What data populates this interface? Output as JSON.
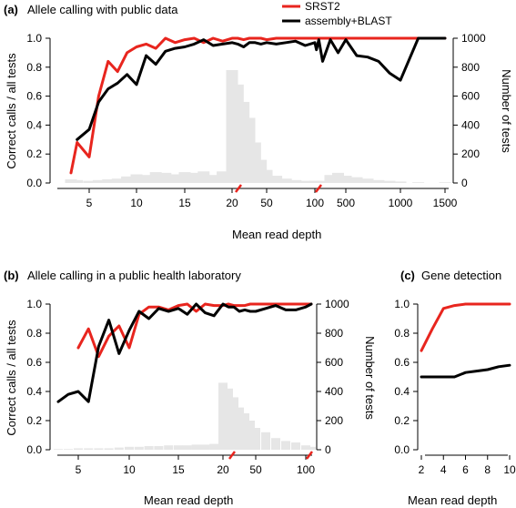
{
  "chart_data": [
    {
      "panel": "(a)",
      "type": "line",
      "title": "Allele calling with public data",
      "xlabel": "Mean read depth",
      "ylabel": "Correct calls / all tests",
      "y2label": "Number of tests",
      "ylim": [
        0,
        1
      ],
      "y2lim": [
        0,
        1000
      ],
      "yticks": [
        "0.0",
        "0.2",
        "0.4",
        "0.6",
        "0.8",
        "1.0"
      ],
      "y2ticks": [
        "0",
        "200",
        "400",
        "600",
        "800",
        "1000"
      ],
      "xticks": [
        "5",
        "10",
        "15",
        "20",
        "50",
        "100",
        "500",
        "1000",
        "1500"
      ],
      "legend": "top-right",
      "x": [
        3.5,
        4,
        5,
        6,
        7,
        8,
        9,
        10,
        11,
        12,
        13,
        14,
        15,
        16,
        17,
        18,
        19,
        20,
        25,
        30,
        35,
        40,
        45,
        50,
        60,
        70,
        80,
        90,
        100,
        120,
        150,
        200,
        300,
        400,
        500,
        600,
        700,
        800,
        900,
        1000,
        1200,
        1500
      ],
      "series": [
        {
          "name": "SRST2",
          "color": "#e8251e",
          "values": [
            0.07,
            0.28,
            0.18,
            0.6,
            0.84,
            0.77,
            0.9,
            0.94,
            0.96,
            0.93,
            1.0,
            0.97,
            0.99,
            1.0,
            0.97,
            1.0,
            0.98,
            1.0,
            1.0,
            0.99,
            1.0,
            1.0,
            1.0,
            0.99,
            1.0,
            1.0,
            1.0,
            1.0,
            1.0,
            1.0,
            1.0,
            1.0,
            1.0,
            1.0,
            1.0,
            1.0,
            1.0,
            1.0,
            1.0,
            1.0,
            1.0,
            1.0
          ]
        },
        {
          "name": "assembly+BLAST",
          "color": "#000000",
          "values": [
            null,
            0.3,
            0.37,
            0.56,
            0.65,
            0.69,
            0.75,
            0.68,
            0.88,
            0.82,
            0.91,
            0.93,
            0.94,
            0.96,
            0.99,
            0.95,
            0.96,
            0.97,
            0.96,
            0.94,
            0.97,
            0.97,
            0.96,
            0.97,
            0.96,
            0.97,
            0.98,
            0.95,
            0.97,
            0.92,
            0.99,
            0.84,
            0.99,
            0.9,
            0.99,
            0.88,
            0.87,
            0.84,
            0.76,
            0.71,
            1.0,
            1.0
          ]
        }
      ],
      "histogram": {
        "name": "Number of tests",
        "color": "#e6e6e6",
        "x": [
          3.5,
          4,
          5,
          6,
          7,
          8,
          9,
          10,
          11,
          12,
          13,
          14,
          15,
          16,
          17,
          18,
          19,
          20,
          25,
          30,
          35,
          40,
          45,
          50,
          60,
          70,
          80,
          90,
          100,
          120,
          150,
          200,
          300,
          400,
          500,
          600,
          700,
          800,
          900,
          1000,
          1200,
          1500
        ],
        "values": [
          25,
          20,
          15,
          20,
          25,
          30,
          45,
          60,
          55,
          75,
          70,
          60,
          75,
          70,
          80,
          55,
          80,
          780,
          680,
          560,
          450,
          280,
          160,
          90,
          50,
          30,
          20,
          15,
          15,
          15,
          10,
          15,
          55,
          70,
          50,
          40,
          30,
          20,
          15,
          10,
          5,
          5
        ]
      }
    },
    {
      "panel": "(b)",
      "type": "line",
      "title": "Allele calling in a public health laboratory",
      "xlabel": "Mean read depth",
      "ylabel": "Correct calls / all tests",
      "y2label": "Number of tests",
      "ylim": [
        0,
        1
      ],
      "y2lim": [
        0,
        1000
      ],
      "yticks": [
        "0.0",
        "0.2",
        "0.4",
        "0.6",
        "0.8",
        "1.0"
      ],
      "y2ticks": [
        "0",
        "200",
        "400",
        "600",
        "800",
        "1000"
      ],
      "xticks": [
        "5",
        "10",
        "15",
        "20",
        "50",
        "100"
      ],
      "x": [
        3,
        4,
        5,
        6,
        7,
        8,
        9,
        10,
        11,
        12,
        13,
        14,
        15,
        16,
        17,
        18,
        19,
        20,
        25,
        30,
        35,
        40,
        45,
        50,
        60,
        70,
        80,
        90,
        100,
        120
      ],
      "series": [
        {
          "name": "SRST2",
          "color": "#e8251e",
          "values": [
            null,
            null,
            0.7,
            0.83,
            0.64,
            0.78,
            0.85,
            0.7,
            0.93,
            0.98,
            0.98,
            0.96,
            0.99,
            1.0,
            0.95,
            1.0,
            0.99,
            0.99,
            1.0,
            0.99,
            0.99,
            0.99,
            1.0,
            1.0,
            1.0,
            1.0,
            1.0,
            1.0,
            1.0,
            1.0
          ]
        },
        {
          "name": "assembly+BLAST",
          "color": "#000000",
          "values": [
            0.33,
            0.38,
            0.4,
            0.33,
            0.71,
            0.89,
            0.66,
            0.82,
            0.95,
            0.9,
            0.97,
            0.95,
            0.97,
            0.93,
            1.0,
            0.94,
            0.92,
            1.0,
            0.98,
            0.98,
            0.95,
            0.96,
            0.95,
            0.95,
            0.97,
            0.99,
            0.96,
            0.96,
            0.98,
            1.0
          ]
        }
      ],
      "histogram": {
        "name": "Number of tests",
        "color": "#e6e6e6",
        "x": [
          3,
          4,
          5,
          6,
          7,
          8,
          9,
          10,
          11,
          12,
          13,
          14,
          15,
          16,
          17,
          18,
          19,
          20,
          25,
          30,
          35,
          40,
          45,
          50,
          60,
          70,
          80,
          90,
          100,
          120
        ],
        "values": [
          5,
          5,
          10,
          10,
          10,
          10,
          15,
          20,
          20,
          25,
          25,
          30,
          30,
          30,
          35,
          35,
          40,
          460,
          420,
          360,
          290,
          250,
          200,
          150,
          120,
          80,
          60,
          50,
          30,
          20
        ]
      }
    },
    {
      "panel": "(c)",
      "type": "line",
      "title": "Gene detection",
      "xlabel": "Mean read depth",
      "ylim": [
        0,
        1
      ],
      "yticks": [
        "0.0",
        "0.2",
        "0.4",
        "0.6",
        "0.8",
        "1.0"
      ],
      "xticks": [
        "2",
        "4",
        "6",
        "8",
        "10"
      ],
      "x": [
        2,
        3,
        4,
        5,
        6,
        7,
        8,
        9,
        10
      ],
      "series": [
        {
          "name": "SRST2",
          "color": "#e8251e",
          "values": [
            0.68,
            0.83,
            0.97,
            0.99,
            1.0,
            1.0,
            1.0,
            1.0,
            1.0
          ]
        },
        {
          "name": "assembly+BLAST",
          "color": "#000000",
          "values": [
            0.5,
            0.5,
            0.5,
            0.5,
            0.53,
            0.54,
            0.55,
            0.57,
            0.58
          ]
        }
      ]
    }
  ]
}
